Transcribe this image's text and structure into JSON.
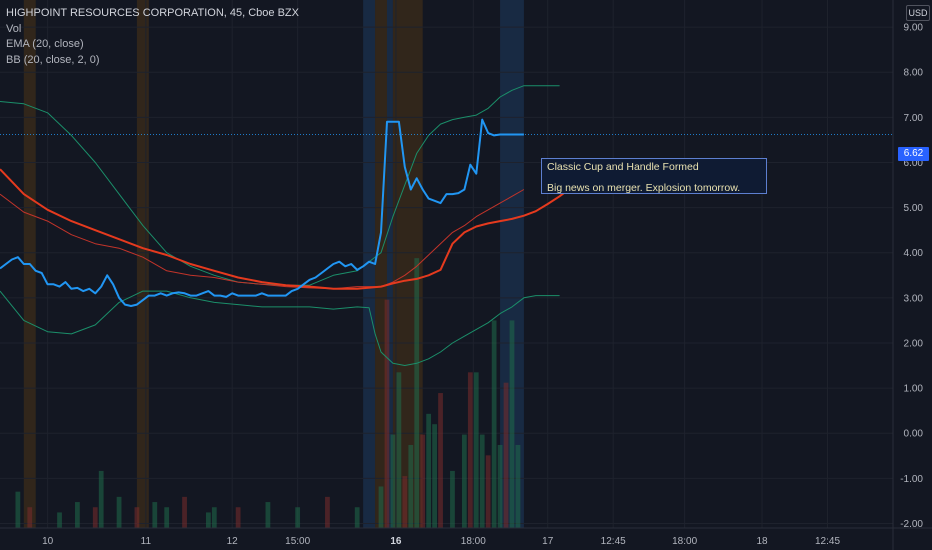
{
  "header": {
    "symbol_line": "HIGHPOINT RESOURCES CORPORATION, 45, Cboe BZX",
    "indicators": [
      "Vol",
      "EMA (20, close)",
      "BB (20, close, 2, 0)"
    ],
    "currency": "USD"
  },
  "last_price_label": "6.62",
  "annotation": {
    "line1": "Classic Cup and Handle Formed",
    "line2": "Big news on merger. Explosion tomorrow."
  },
  "colors": {
    "background": "#131722",
    "price": "#2196f3",
    "ema": "#e53a1e",
    "bb": "#1b8f6a",
    "bb_mid": "#c2342a",
    "blue_session": "#1d3b5e",
    "orange_session": "#4a3316"
  },
  "chart_data": {
    "type": "line",
    "y_axis": {
      "ticks": [
        "9.00",
        "8.00",
        "7.00",
        "6.00",
        "5.00",
        "4.00",
        "3.00",
        "2.00",
        "1.00",
        "0.00",
        "-1.00",
        "-2.00"
      ],
      "range": [
        -2.1,
        9.6
      ]
    },
    "x_axis": {
      "ticks": [
        "10",
        "11",
        "12",
        "15:00",
        "16",
        "18:00",
        "17",
        "12:45",
        "18:00",
        "18",
        "12:45"
      ],
      "bold_ticks": [
        "16"
      ]
    },
    "x_range": [
      0,
      150
    ],
    "x_tick_positions": [
      8,
      24.5,
      39,
      50,
      66.5,
      79.5,
      92,
      103,
      115,
      128,
      139
    ],
    "series": [
      {
        "key": "close",
        "x": [
          0,
          2,
          3,
          4,
          5,
          6,
          7,
          8,
          9,
          10,
          11,
          12,
          13,
          14,
          15,
          16,
          17,
          18,
          19,
          20,
          21,
          22,
          23,
          24,
          25,
          26,
          27,
          28,
          29,
          30,
          31,
          32,
          33,
          34,
          35,
          36,
          37,
          38,
          39,
          40,
          41,
          42,
          43,
          44,
          45,
          46,
          47,
          48,
          49,
          50,
          51,
          52,
          53,
          54,
          55,
          56,
          57,
          58,
          59,
          60,
          61,
          62,
          63,
          64,
          65,
          66,
          67,
          68,
          69,
          70,
          71,
          72,
          73,
          74,
          75,
          76,
          77,
          78,
          79,
          80,
          81,
          82,
          83,
          84,
          85,
          86,
          87,
          88
        ],
        "values": [
          3.65,
          3.85,
          3.9,
          3.75,
          3.75,
          3.6,
          3.55,
          3.3,
          3.3,
          3.25,
          3.35,
          3.2,
          3.22,
          3.15,
          3.2,
          3.1,
          3.25,
          3.5,
          3.3,
          3.0,
          2.85,
          2.82,
          2.85,
          2.95,
          3.05,
          3.05,
          3.1,
          3.05,
          3.1,
          3.12,
          3.1,
          3.05,
          3.05,
          3.1,
          3.15,
          3.05,
          3.05,
          3.02,
          3.1,
          3.05,
          3.05,
          3.05,
          3.05,
          3.1,
          3.05,
          3.05,
          3.05,
          3.05,
          3.15,
          3.2,
          3.3,
          3.4,
          3.45,
          3.55,
          3.65,
          3.75,
          3.8,
          3.7,
          3.75,
          3.62,
          3.7,
          3.8,
          3.75,
          4.45,
          6.9,
          6.9,
          6.9,
          5.9,
          5.4,
          5.65,
          5.4,
          5.2,
          5.15,
          5.1,
          5.3,
          5.3,
          5.32,
          5.4,
          5.95,
          5.75,
          6.95,
          6.65,
          6.6,
          6.62,
          6.62,
          6.62,
          6.62,
          6.62
        ]
      },
      {
        "key": "ema",
        "x": [
          0,
          4,
          8,
          12,
          16,
          20,
          24,
          28,
          32,
          36,
          40,
          44,
          48,
          52,
          56,
          60,
          64,
          66,
          68,
          70,
          72,
          74,
          76,
          78,
          80,
          82,
          84,
          86,
          88,
          90,
          92,
          94,
          96
        ],
        "values": [
          5.85,
          5.3,
          4.95,
          4.7,
          4.5,
          4.3,
          4.1,
          3.95,
          3.75,
          3.6,
          3.45,
          3.35,
          3.28,
          3.25,
          3.2,
          3.2,
          3.25,
          3.32,
          3.38,
          3.42,
          3.5,
          3.62,
          4.2,
          4.45,
          4.58,
          4.65,
          4.7,
          4.75,
          4.82,
          4.92,
          5.08,
          5.25,
          5.45
        ]
      },
      {
        "key": "bb_upper",
        "x": [
          0,
          4,
          8,
          12,
          16,
          20,
          24,
          28,
          32,
          36,
          40,
          44,
          48,
          52,
          56,
          60,
          64,
          66,
          68,
          70,
          72,
          74,
          76,
          78,
          80,
          82,
          84,
          86,
          88,
          90,
          92,
          94
        ],
        "values": [
          7.35,
          7.3,
          7.1,
          6.6,
          6.0,
          5.3,
          4.6,
          4.0,
          3.7,
          3.5,
          3.35,
          3.3,
          3.28,
          3.28,
          3.5,
          3.6,
          4.0,
          4.8,
          5.5,
          6.2,
          6.6,
          6.85,
          6.95,
          7.0,
          7.05,
          7.2,
          7.45,
          7.6,
          7.7,
          7.7,
          7.7,
          7.7
        ]
      },
      {
        "key": "bb_lower",
        "x": [
          0,
          4,
          8,
          12,
          16,
          20,
          24,
          28,
          32,
          36,
          40,
          44,
          48,
          52,
          56,
          60,
          62,
          63,
          64,
          66,
          68,
          70,
          72,
          74,
          76,
          78,
          80,
          82,
          84,
          86,
          88,
          90,
          92,
          94
        ],
        "values": [
          3.15,
          2.5,
          2.25,
          2.2,
          2.4,
          2.9,
          3.15,
          3.15,
          3.0,
          2.9,
          2.85,
          2.8,
          2.8,
          2.8,
          2.75,
          2.8,
          2.78,
          2.2,
          1.8,
          1.55,
          1.5,
          1.55,
          1.65,
          1.8,
          2.0,
          2.15,
          2.3,
          2.45,
          2.65,
          2.8,
          3.0,
          3.05,
          3.05,
          3.05
        ]
      },
      {
        "key": "bb_basis",
        "x": [
          0,
          4,
          8,
          12,
          16,
          20,
          24,
          28,
          32,
          36,
          40,
          44,
          48,
          52,
          56,
          60,
          64,
          66,
          68,
          70,
          72,
          74,
          76,
          78,
          80,
          82,
          84,
          86,
          88
        ],
        "values": [
          5.3,
          4.9,
          4.7,
          4.4,
          4.2,
          4.1,
          3.9,
          3.6,
          3.5,
          3.45,
          3.35,
          3.3,
          3.25,
          3.22,
          3.2,
          3.25,
          3.25,
          3.35,
          3.5,
          3.7,
          3.95,
          4.2,
          4.45,
          4.6,
          4.8,
          4.95,
          5.1,
          5.25,
          5.4
        ]
      }
    ],
    "volume": {
      "x": [
        3,
        5,
        10,
        13,
        16,
        17,
        20,
        23,
        26,
        28,
        31,
        35,
        36,
        40,
        45,
        50,
        55,
        60,
        64,
        65,
        66,
        67,
        68,
        69,
        70,
        71,
        72,
        73,
        74,
        76,
        78,
        79,
        80,
        81,
        82,
        83,
        84,
        85,
        86,
        87
      ],
      "values": [
        0.35,
        0.2,
        0.15,
        0.25,
        0.2,
        0.55,
        0.3,
        0.2,
        0.25,
        0.2,
        0.3,
        0.15,
        0.2,
        0.2,
        0.25,
        0.2,
        0.3,
        0.2,
        0.4,
        2.2,
        0.9,
        1.5,
        0.5,
        0.8,
        2.6,
        0.9,
        1.1,
        1.0,
        1.3,
        0.55,
        0.9,
        1.5,
        1.5,
        0.9,
        0.7,
        2.0,
        0.8,
        1.4,
        2.0,
        0.8
      ]
    },
    "sessions": [
      {
        "from": 4,
        "to": 6,
        "kind": "orange"
      },
      {
        "from": 23,
        "to": 25,
        "kind": "orange"
      },
      {
        "from": 61,
        "to": 63,
        "kind": "blue"
      },
      {
        "from": 63,
        "to": 65,
        "kind": "orange"
      },
      {
        "from": 65,
        "to": 66,
        "kind": "blue"
      },
      {
        "from": 66,
        "to": 71,
        "kind": "orange"
      },
      {
        "from": 84,
        "to": 88,
        "kind": "blue"
      }
    ],
    "last_price": 6.62
  }
}
